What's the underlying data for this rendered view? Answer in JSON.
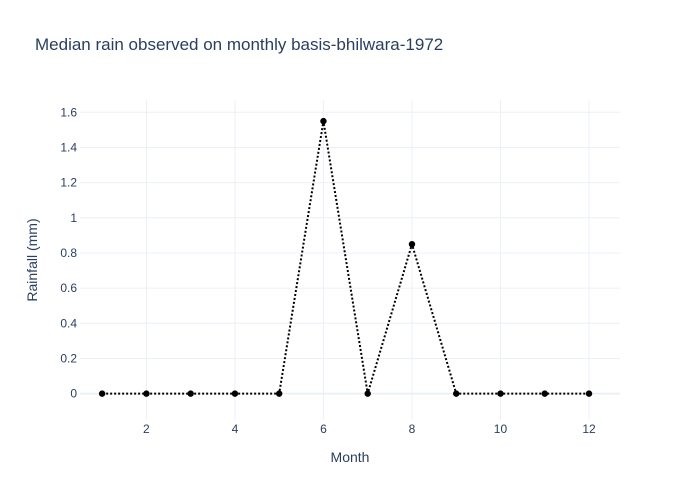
{
  "chart_data": {
    "type": "line",
    "title": "Median rain observed on monthly basis-bhilwara-1972",
    "xlabel": "Month",
    "ylabel": "Rainfall (mm)",
    "x": [
      1,
      2,
      3,
      4,
      5,
      6,
      7,
      8,
      9,
      10,
      11,
      12
    ],
    "series": [
      {
        "values": [
          0,
          0,
          0,
          0,
          0,
          1.55,
          0,
          0.85,
          0,
          0,
          0,
          0
        ]
      }
    ],
    "xlim": [
      0.5,
      12.7
    ],
    "ylim": [
      -0.15,
      1.67
    ],
    "x_ticks": [
      2,
      4,
      6,
      8,
      10,
      12
    ],
    "y_ticks": [
      0,
      0.2,
      0.4,
      0.6,
      0.8,
      1,
      1.2,
      1.4,
      1.6
    ],
    "x_tick_labels": [
      "2",
      "4",
      "6",
      "8",
      "10",
      "12"
    ],
    "y_tick_labels": [
      "0",
      "0.2",
      "0.4",
      "0.6",
      "0.8",
      "1",
      "1.2",
      "1.4",
      "1.6"
    ],
    "grid": true,
    "line_style": "dotted",
    "colors": {
      "line": "#000000",
      "marker": "#000000",
      "grid": "#ebf0f8",
      "text": "#2a3f5f"
    }
  }
}
